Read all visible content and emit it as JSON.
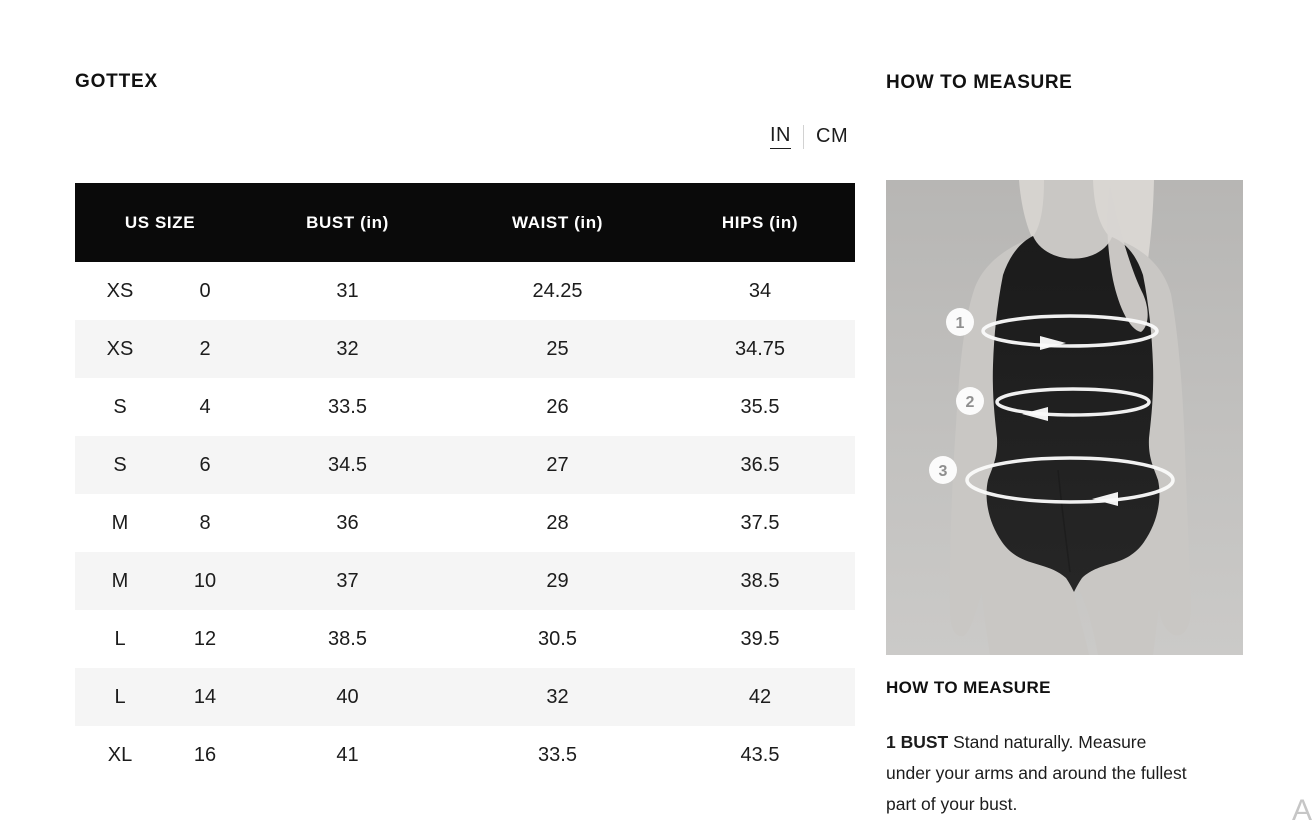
{
  "brand": "GOTTEX",
  "unit_toggle": {
    "in_label": "IN",
    "cm_label": "CM",
    "active_unit": "IN"
  },
  "size_chart": {
    "headers": [
      "US SIZE",
      "BUST (in)",
      "WAIST (in)",
      "HIPS (in)"
    ],
    "rows": [
      {
        "size_letter": "XS",
        "size_number": "0",
        "bust": "31",
        "waist": "24.25",
        "hips": "34"
      },
      {
        "size_letter": "XS",
        "size_number": "2",
        "bust": "32",
        "waist": "25",
        "hips": "34.75"
      },
      {
        "size_letter": "S",
        "size_number": "4",
        "bust": "33.5",
        "waist": "26",
        "hips": "35.5"
      },
      {
        "size_letter": "S",
        "size_number": "6",
        "bust": "34.5",
        "waist": "27",
        "hips": "36.5"
      },
      {
        "size_letter": "M",
        "size_number": "8",
        "bust": "36",
        "waist": "28",
        "hips": "37.5"
      },
      {
        "size_letter": "M",
        "size_number": "10",
        "bust": "37",
        "waist": "29",
        "hips": "38.5"
      },
      {
        "size_letter": "L",
        "size_number": "12",
        "bust": "38.5",
        "waist": "30.5",
        "hips": "39.5"
      },
      {
        "size_letter": "L",
        "size_number": "14",
        "bust": "40",
        "waist": "32",
        "hips": "42"
      },
      {
        "size_letter": "XL",
        "size_number": "16",
        "bust": "41",
        "waist": "33.5",
        "hips": "43.5"
      }
    ]
  },
  "how_to_measure": {
    "title": "HOW TO MEASURE",
    "subtitle": "HOW TO MEASURE",
    "instruction_label": "1 BUST",
    "instruction_text": "Stand naturally. Measure under your arms and around the fullest part of your bust.",
    "figure_markers": [
      "1",
      "2",
      "3"
    ]
  },
  "misc": {
    "corner_fragment": "A"
  },
  "colors": {
    "header_bg": "#0a0a0a",
    "header_text": "#ffffff",
    "row_alt": "#f5f5f5",
    "body_text": "#1c1c1c",
    "toggle_divider": "#d2d2d2",
    "photo_background": "#bcbbb9",
    "swimsuit": "#202020"
  }
}
